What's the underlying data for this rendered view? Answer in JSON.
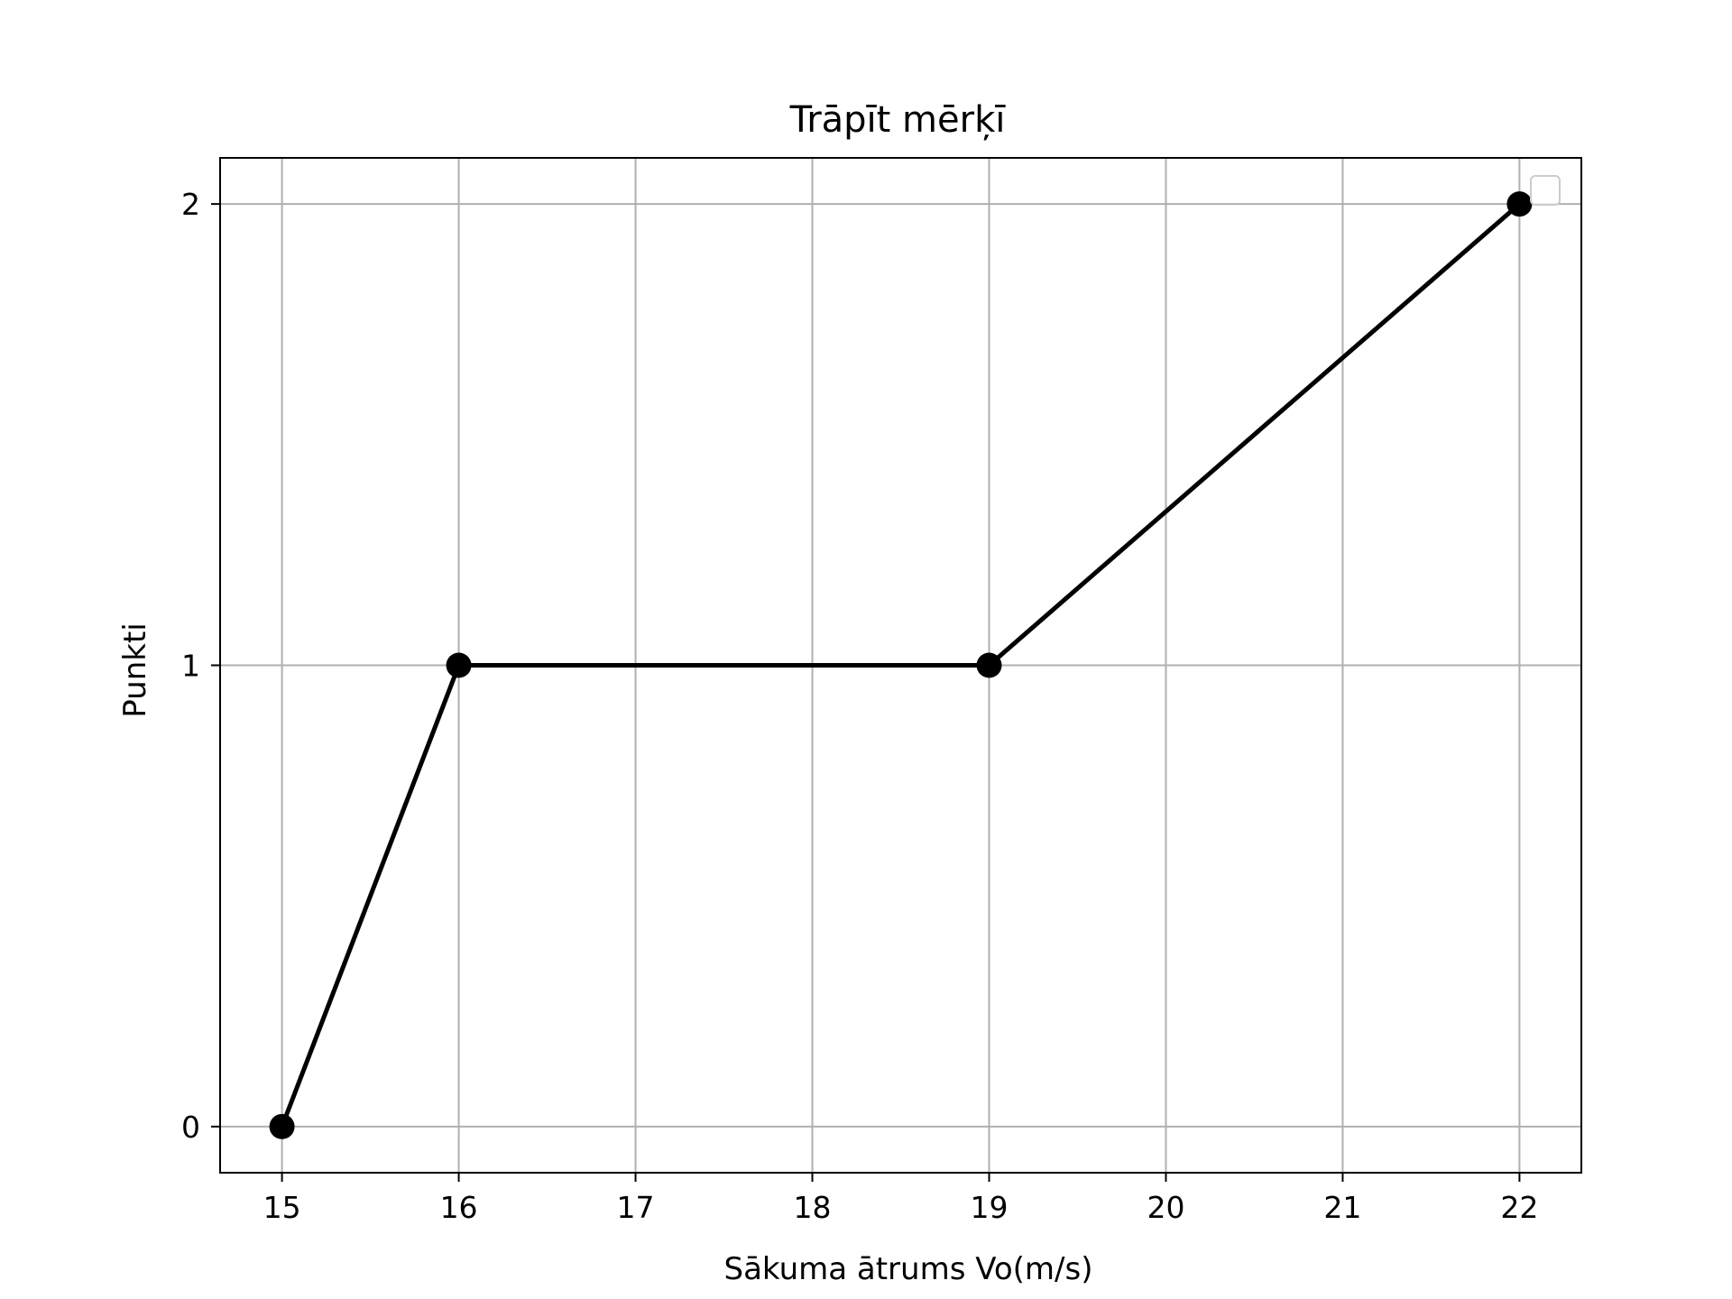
{
  "chart_data": {
    "type": "line",
    "title": "Trāpīt mērķī",
    "xlabel": "Sākuma ātrums Vo(m/s)",
    "ylabel": "Punkti",
    "x": [
      15,
      16,
      19,
      22
    ],
    "series": [
      {
        "values": [
          0,
          1,
          1,
          2
        ],
        "color": "#000000",
        "marker": "circle"
      }
    ],
    "xlim": [
      14.65,
      22.35
    ],
    "ylim": [
      -0.1,
      2.1
    ],
    "xticks": [
      15,
      16,
      17,
      18,
      19,
      20,
      21,
      22
    ],
    "yticks": [
      0,
      1,
      2
    ],
    "grid": true,
    "grid_color": "#b0b0b0",
    "legend": {
      "placement": "top-right",
      "entries": []
    }
  }
}
